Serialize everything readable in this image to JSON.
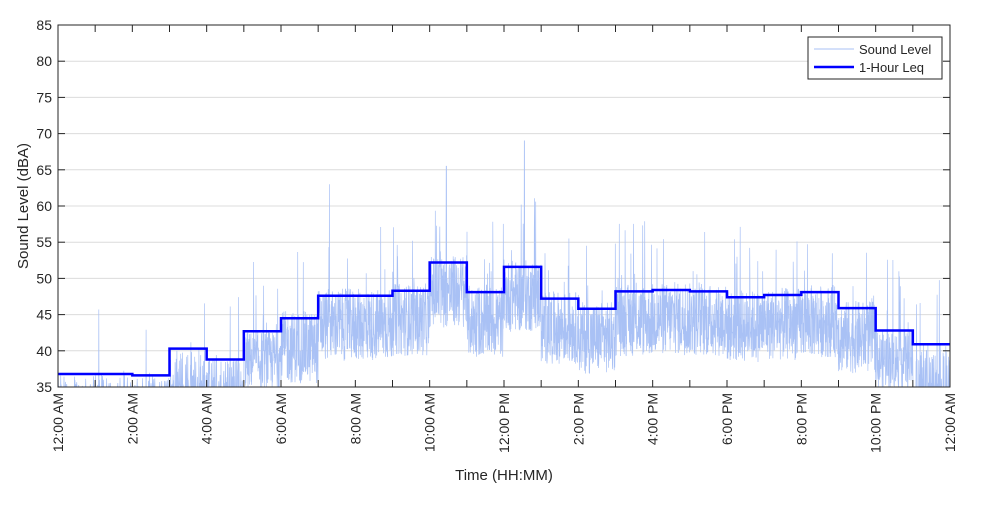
{
  "chart_data": {
    "type": "line",
    "title": "",
    "xlabel": "Time (HH:MM)",
    "ylabel": "Sound Level (dBA)",
    "ylim": [
      35,
      85
    ],
    "xlim_hours": [
      0,
      24
    ],
    "yticks": [
      35,
      40,
      45,
      50,
      55,
      60,
      65,
      70,
      75,
      80,
      85
    ],
    "xticks_hours": [
      0,
      2,
      4,
      6,
      8,
      10,
      12,
      14,
      16,
      18,
      20,
      22,
      24
    ],
    "xtick_labels": [
      "12:00 AM",
      "2:00 AM",
      "4:00 AM",
      "6:00 AM",
      "8:00 AM",
      "10:00 AM",
      "12:00 PM",
      "2:00 PM",
      "4:00 PM",
      "6:00 PM",
      "8:00 PM",
      "10:00 PM",
      "12:00 AM"
    ],
    "grid": "horizontal",
    "legend": {
      "placement": "top-right",
      "entries": [
        "Sound Level",
        "1-Hour Leq"
      ]
    },
    "series": [
      {
        "name": "Sound Level",
        "color": "#a9c1f5",
        "note": "approximate continuous trace; generated around hourly Leq",
        "peaks": [
          {
            "hour": 7.3,
            "value": 63
          },
          {
            "hour": 10.45,
            "value": 65.5
          },
          {
            "hour": 12.55,
            "value": 69
          }
        ]
      },
      {
        "name": "1-Hour Leq",
        "color": "#0000ff",
        "hours": [
          0,
          1,
          2,
          3,
          4,
          5,
          6,
          7,
          8,
          9,
          10,
          11,
          12,
          13,
          14,
          15,
          16,
          17,
          18,
          19,
          20,
          21,
          22,
          23
        ],
        "values": [
          36.8,
          36.8,
          36.6,
          40.3,
          38.8,
          42.7,
          44.5,
          47.6,
          47.6,
          48.3,
          52.2,
          48.1,
          51.6,
          47.2,
          45.8,
          48.2,
          48.4,
          48.2,
          47.4,
          47.7,
          48.1,
          45.9,
          42.8,
          40.9
        ]
      }
    ]
  }
}
